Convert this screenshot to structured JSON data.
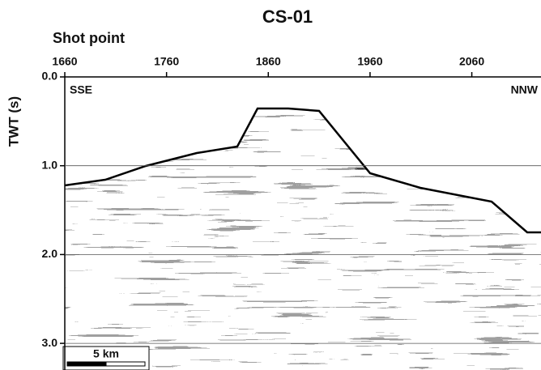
{
  "chart_data": {
    "type": "seismic",
    "title": "CS-01",
    "x_label": "Shot point",
    "y_label": "TWT (s)",
    "xlim": [
      1660,
      2128
    ],
    "xticks": [
      1660,
      1760,
      1860,
      1960,
      2060
    ],
    "ylim": [
      0,
      3.3
    ],
    "yticks": [
      {
        "value": 0,
        "label": "0.0"
      },
      {
        "value": 1,
        "label": "1.0"
      },
      {
        "value": 2,
        "label": "2.0"
      },
      {
        "value": 3,
        "label": "3.0"
      }
    ],
    "grid": true,
    "left_label": "SSE",
    "right_label": "NNW",
    "scale_label": "5 km"
  }
}
